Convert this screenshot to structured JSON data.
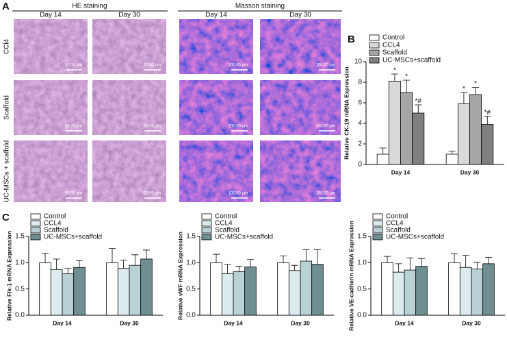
{
  "panel_a": {
    "label": "A",
    "he_title": "HE staining",
    "masson_title": "Masson staining",
    "columns": [
      "Day 14",
      "Day 30",
      "Day 14",
      "Day 30"
    ],
    "rows": [
      "CCl4",
      "Scaffold",
      "UC-MSCs + scaffold"
    ],
    "he_scale": "50.00 μm",
    "masson_scale": "100.00 μm"
  },
  "chart_data": [
    {
      "type": "bar",
      "panel": "B",
      "ylabel": "Relative CK-19 mRNA Expression",
      "categories": [
        "Day 14",
        "Day 30"
      ],
      "ylim": [
        0,
        10
      ],
      "yticks": [
        0,
        2,
        4,
        6,
        8,
        10
      ],
      "grid": false,
      "legend": "upper left",
      "series": [
        {
          "name": "Control",
          "color": "#ffffff",
          "values": [
            1.0,
            1.0
          ],
          "errors": [
            0.6,
            0.3
          ],
          "annotations": [
            null,
            null
          ]
        },
        {
          "name": "CCL4",
          "color": "#d9d9d9",
          "values": [
            8.1,
            5.9
          ],
          "errors": [
            0.7,
            1.1
          ],
          "annotations": [
            "*",
            "*"
          ]
        },
        {
          "name": "Scaffold",
          "color": "#a6a6a6",
          "values": [
            7.0,
            6.8
          ],
          "errors": [
            1.2,
            0.7
          ],
          "annotations": [
            "*",
            "*"
          ]
        },
        {
          "name": "UC-MSCs+scaffold",
          "color": "#808080",
          "values": [
            5.0,
            3.9
          ],
          "errors": [
            0.8,
            0.8
          ],
          "annotations": [
            "*#",
            "*#"
          ]
        }
      ]
    },
    {
      "type": "bar",
      "panel": "C",
      "ylabel": "Relative Flk-1 mRNA Expression",
      "categories": [
        "Day 14",
        "Day 30"
      ],
      "ylim": [
        0,
        1.5
      ],
      "yticks": [
        {
          "value": 0,
          "label": "0.0"
        },
        {
          "value": 0.5,
          "label": "0.5"
        },
        {
          "value": 1,
          "label": "1.0"
        },
        {
          "value": 1.5,
          "label": "1.5"
        }
      ],
      "grid": false,
      "legend": "upper left",
      "series": [
        {
          "name": "Control",
          "color": "#ffffff",
          "values": [
            1.0,
            1.0
          ],
          "errors": [
            0.18,
            0.27
          ]
        },
        {
          "name": "CCL4",
          "color": "#dcecee",
          "values": [
            0.87,
            0.89
          ],
          "errors": [
            0.2,
            0.16
          ]
        },
        {
          "name": "Scaffold",
          "color": "#b9d0d4",
          "values": [
            0.79,
            0.95
          ],
          "errors": [
            0.1,
            0.2
          ]
        },
        {
          "name": "UC-MSCs+scaffold",
          "color": "#6f8f93",
          "values": [
            0.91,
            1.07
          ],
          "errors": [
            0.13,
            0.17
          ]
        }
      ]
    },
    {
      "type": "bar",
      "ylabel": "Relative vWF mRNA Expression",
      "categories": [
        "Day 14",
        "Day 30"
      ],
      "ylim": [
        0,
        1.5
      ],
      "yticks": [
        {
          "value": 0,
          "label": "0.0"
        },
        {
          "value": 0.5,
          "label": "0.5"
        },
        {
          "value": 1,
          "label": "1.0"
        },
        {
          "value": 1.5,
          "label": "1.5"
        }
      ],
      "grid": false,
      "legend": "upper left",
      "series": [
        {
          "name": "Control",
          "color": "#ffffff",
          "values": [
            1.0,
            1.0
          ],
          "errors": [
            0.16,
            0.13
          ]
        },
        {
          "name": "CCL4",
          "color": "#dcecee",
          "values": [
            0.79,
            0.85
          ],
          "errors": [
            0.18,
            0.1
          ]
        },
        {
          "name": "Scaffold",
          "color": "#b9d0d4",
          "values": [
            0.83,
            1.03
          ],
          "errors": [
            0.1,
            0.22
          ]
        },
        {
          "name": "UC-MSCs+scaffold",
          "color": "#6f8f93",
          "values": [
            0.92,
            0.97
          ],
          "errors": [
            0.14,
            0.28
          ]
        }
      ]
    },
    {
      "type": "bar",
      "ylabel": "Relative VE-cadherin mRNA Expression",
      "categories": [
        "Day 14",
        "Day 30"
      ],
      "ylim": [
        0,
        1.5
      ],
      "yticks": [
        {
          "value": 0,
          "label": "0.0"
        },
        {
          "value": 0.5,
          "label": "0.5"
        },
        {
          "value": 1,
          "label": "1.0"
        },
        {
          "value": 1.5,
          "label": "1.5"
        }
      ],
      "grid": false,
      "legend": "upper left",
      "series": [
        {
          "name": "Control",
          "color": "#ffffff",
          "values": [
            1.0,
            1.0
          ],
          "errors": [
            0.12,
            0.17
          ]
        },
        {
          "name": "CCL4",
          "color": "#dcecee",
          "values": [
            0.82,
            0.91
          ],
          "errors": [
            0.16,
            0.23
          ]
        },
        {
          "name": "Scaffold",
          "color": "#b9d0d4",
          "values": [
            0.86,
            0.88
          ],
          "errors": [
            0.23,
            0.13
          ]
        },
        {
          "name": "UC-MSCs+scaffold",
          "color": "#6f8f93",
          "values": [
            0.93,
            0.98
          ],
          "errors": [
            0.15,
            0.12
          ]
        }
      ]
    }
  ]
}
